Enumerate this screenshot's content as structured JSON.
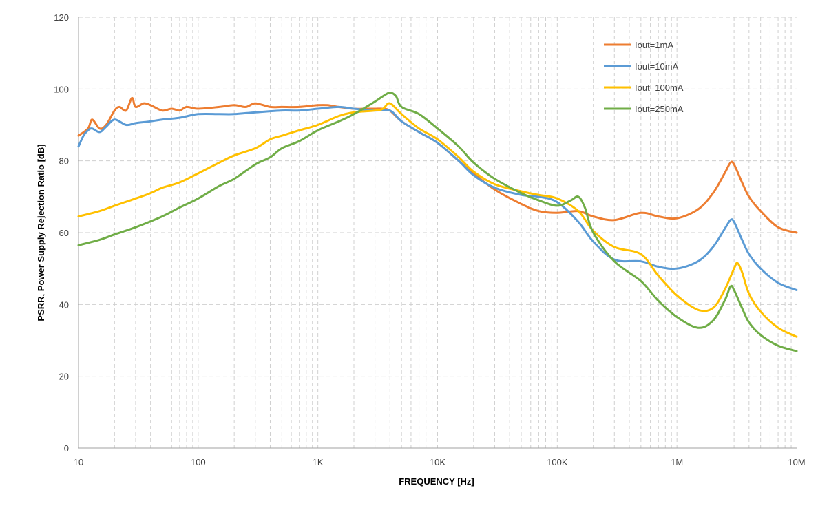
{
  "chart_data": {
    "type": "line",
    "x_scale": "log",
    "xlabel": "FREQUENCY [Hz]",
    "ylabel": "PSRR, Power Supply Rejection Ratio [dB]",
    "xlim": [
      10,
      10000000
    ],
    "ylim": [
      0,
      120
    ],
    "x_ticks": [
      {
        "value": 10,
        "label": "10"
      },
      {
        "value": 100,
        "label": "100"
      },
      {
        "value": 1000,
        "label": "1K"
      },
      {
        "value": 10000,
        "label": "10K"
      },
      {
        "value": 100000,
        "label": "100K"
      },
      {
        "value": 1000000,
        "label": "1M"
      },
      {
        "value": 10000000,
        "label": "10M"
      }
    ],
    "y_ticks": [
      0,
      20,
      40,
      60,
      80,
      100,
      120
    ],
    "grid": {
      "horizontal": "dashed",
      "vertical_minor_log": "dashed"
    },
    "legend_position": "top-right",
    "series": [
      {
        "name": "Iout=1mA",
        "color": "#ED7D31",
        "points": [
          [
            10,
            87
          ],
          [
            12,
            89
          ],
          [
            13,
            91.5
          ],
          [
            15,
            89
          ],
          [
            17,
            90
          ],
          [
            20,
            94
          ],
          [
            22,
            95
          ],
          [
            25,
            94
          ],
          [
            28,
            97.5
          ],
          [
            30,
            95
          ],
          [
            35,
            96
          ],
          [
            40,
            95.5
          ],
          [
            50,
            94
          ],
          [
            60,
            94.5
          ],
          [
            70,
            94
          ],
          [
            80,
            95
          ],
          [
            100,
            94.5
          ],
          [
            150,
            95
          ],
          [
            200,
            95.5
          ],
          [
            250,
            95
          ],
          [
            300,
            96
          ],
          [
            400,
            95
          ],
          [
            500,
            95
          ],
          [
            700,
            95
          ],
          [
            1000,
            95.5
          ],
          [
            1200,
            95.5
          ],
          [
            1500,
            95
          ],
          [
            2000,
            94.5
          ],
          [
            2500,
            94.5
          ],
          [
            3000,
            94.5
          ],
          [
            3500,
            94.5
          ],
          [
            4000,
            94
          ],
          [
            5000,
            91
          ],
          [
            7000,
            88
          ],
          [
            10000,
            85
          ],
          [
            15000,
            80
          ],
          [
            20000,
            76.5
          ],
          [
            30000,
            72
          ],
          [
            50000,
            68
          ],
          [
            70000,
            66
          ],
          [
            100000,
            65.5
          ],
          [
            150000,
            66
          ],
          [
            200000,
            64.5
          ],
          [
            300000,
            63.5
          ],
          [
            500000,
            65.5
          ],
          [
            700000,
            64.5
          ],
          [
            1000000,
            64
          ],
          [
            1500000,
            66.5
          ],
          [
            2000000,
            71
          ],
          [
            2500000,
            76.5
          ],
          [
            2800000,
            79.5
          ],
          [
            3000000,
            79
          ],
          [
            3500000,
            74
          ],
          [
            4000000,
            70
          ],
          [
            5000000,
            66
          ],
          [
            7000000,
            61.5
          ],
          [
            10000000,
            60
          ]
        ]
      },
      {
        "name": "Iout=10mA",
        "color": "#5B9BD5",
        "points": [
          [
            10,
            84
          ],
          [
            11,
            87
          ],
          [
            12,
            88.5
          ],
          [
            13,
            89
          ],
          [
            15,
            88
          ],
          [
            17,
            89.5
          ],
          [
            20,
            91.5
          ],
          [
            25,
            90
          ],
          [
            30,
            90.5
          ],
          [
            40,
            91
          ],
          [
            50,
            91.5
          ],
          [
            70,
            92
          ],
          [
            100,
            93
          ],
          [
            150,
            93
          ],
          [
            200,
            93
          ],
          [
            300,
            93.5
          ],
          [
            500,
            94
          ],
          [
            700,
            94
          ],
          [
            1000,
            94.5
          ],
          [
            1500,
            95
          ],
          [
            2000,
            94.5
          ],
          [
            3000,
            94
          ],
          [
            4000,
            94
          ],
          [
            5000,
            91
          ],
          [
            7000,
            88
          ],
          [
            10000,
            85
          ],
          [
            15000,
            80
          ],
          [
            20000,
            76
          ],
          [
            30000,
            72.5
          ],
          [
            50000,
            70.5
          ],
          [
            70000,
            70
          ],
          [
            100000,
            68.5
          ],
          [
            150000,
            63
          ],
          [
            200000,
            57.5
          ],
          [
            300000,
            52.5
          ],
          [
            500000,
            52
          ],
          [
            700000,
            50.5
          ],
          [
            1000000,
            50
          ],
          [
            1500000,
            52
          ],
          [
            2000000,
            56
          ],
          [
            2500000,
            61
          ],
          [
            2800000,
            63.5
          ],
          [
            3000000,
            63
          ],
          [
            3500000,
            58
          ],
          [
            4000000,
            54
          ],
          [
            5000000,
            50
          ],
          [
            7000000,
            46
          ],
          [
            10000000,
            44
          ]
        ]
      },
      {
        "name": "Iout=100mA",
        "color": "#FFC000",
        "points": [
          [
            10,
            64.5
          ],
          [
            15,
            66
          ],
          [
            20,
            67.5
          ],
          [
            30,
            69.5
          ],
          [
            40,
            71
          ],
          [
            50,
            72.5
          ],
          [
            70,
            74
          ],
          [
            100,
            76.5
          ],
          [
            150,
            79.5
          ],
          [
            200,
            81.5
          ],
          [
            300,
            83.5
          ],
          [
            400,
            86
          ],
          [
            500,
            87
          ],
          [
            700,
            88.5
          ],
          [
            1000,
            90
          ],
          [
            1500,
            92.5
          ],
          [
            2000,
            93.5
          ],
          [
            3000,
            94
          ],
          [
            3500,
            94.5
          ],
          [
            4000,
            96
          ],
          [
            5000,
            93
          ],
          [
            7000,
            89
          ],
          [
            10000,
            86
          ],
          [
            15000,
            81
          ],
          [
            20000,
            77
          ],
          [
            30000,
            73.5
          ],
          [
            50000,
            71.5
          ],
          [
            70000,
            70.5
          ],
          [
            100000,
            69.5
          ],
          [
            150000,
            66
          ],
          [
            200000,
            60.5
          ],
          [
            300000,
            56
          ],
          [
            500000,
            54
          ],
          [
            700000,
            48
          ],
          [
            1000000,
            42.5
          ],
          [
            1500000,
            38.5
          ],
          [
            2000000,
            39
          ],
          [
            2500000,
            44
          ],
          [
            3000000,
            50
          ],
          [
            3200000,
            51.5
          ],
          [
            3500000,
            49
          ],
          [
            4000000,
            43
          ],
          [
            5000000,
            38
          ],
          [
            7000000,
            33.5
          ],
          [
            10000000,
            31
          ]
        ]
      },
      {
        "name": "Iout=250mA",
        "color": "#70AD47",
        "points": [
          [
            10,
            56.5
          ],
          [
            15,
            58
          ],
          [
            20,
            59.5
          ],
          [
            30,
            61.5
          ],
          [
            50,
            64.5
          ],
          [
            70,
            67
          ],
          [
            100,
            69.5
          ],
          [
            150,
            73
          ],
          [
            200,
            75
          ],
          [
            300,
            79
          ],
          [
            400,
            81
          ],
          [
            500,
            83.5
          ],
          [
            700,
            85.5
          ],
          [
            1000,
            88.5
          ],
          [
            1500,
            91
          ],
          [
            2000,
            93
          ],
          [
            3000,
            96.5
          ],
          [
            3500,
            98
          ],
          [
            4000,
            99
          ],
          [
            4500,
            98
          ],
          [
            5000,
            95
          ],
          [
            7000,
            93
          ],
          [
            10000,
            89
          ],
          [
            15000,
            84
          ],
          [
            20000,
            79.5
          ],
          [
            30000,
            75
          ],
          [
            50000,
            71
          ],
          [
            70000,
            69
          ],
          [
            100000,
            67.5
          ],
          [
            130000,
            69
          ],
          [
            150000,
            70
          ],
          [
            170000,
            67
          ],
          [
            200000,
            60
          ],
          [
            300000,
            52
          ],
          [
            500000,
            46.5
          ],
          [
            700000,
            41
          ],
          [
            1000000,
            36.5
          ],
          [
            1500000,
            33.5
          ],
          [
            2000000,
            35.5
          ],
          [
            2500000,
            41
          ],
          [
            2800000,
            45
          ],
          [
            3000000,
            44
          ],
          [
            3500000,
            39
          ],
          [
            4000000,
            35
          ],
          [
            5000000,
            31.5
          ],
          [
            7000000,
            28.5
          ],
          [
            10000000,
            27
          ]
        ]
      }
    ]
  }
}
